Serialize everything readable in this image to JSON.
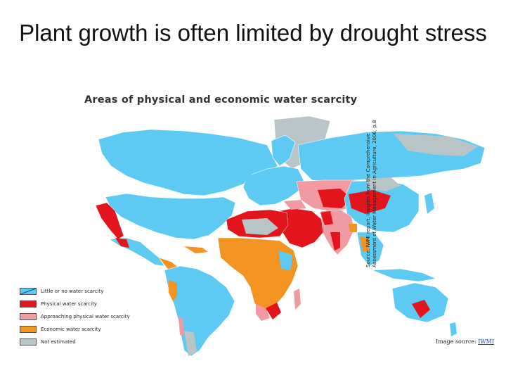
{
  "slide_title": "Plant growth is often limited by drought stress",
  "map_title": "Areas of physical and economic water scarcity",
  "legend": [
    {
      "label": "Little or no water scarcity",
      "color": "#5ccaf2"
    },
    {
      "label": "Physical water scarcity",
      "color": "#e4141c"
    },
    {
      "label": "Approaching physical water scarcity",
      "color": "#f19aa2"
    },
    {
      "label": "Economic water scarcity",
      "color": "#f39321"
    },
    {
      "label": "Not estimated",
      "color": "#b9c4c6"
    }
  ],
  "source_note": "Source: IWMI report, Insights from the Comprehensive Assessment of Water Management in Agriculture, 2006, p.8",
  "credit": {
    "prefix": "Image source: ",
    "link": "IWMI"
  }
}
